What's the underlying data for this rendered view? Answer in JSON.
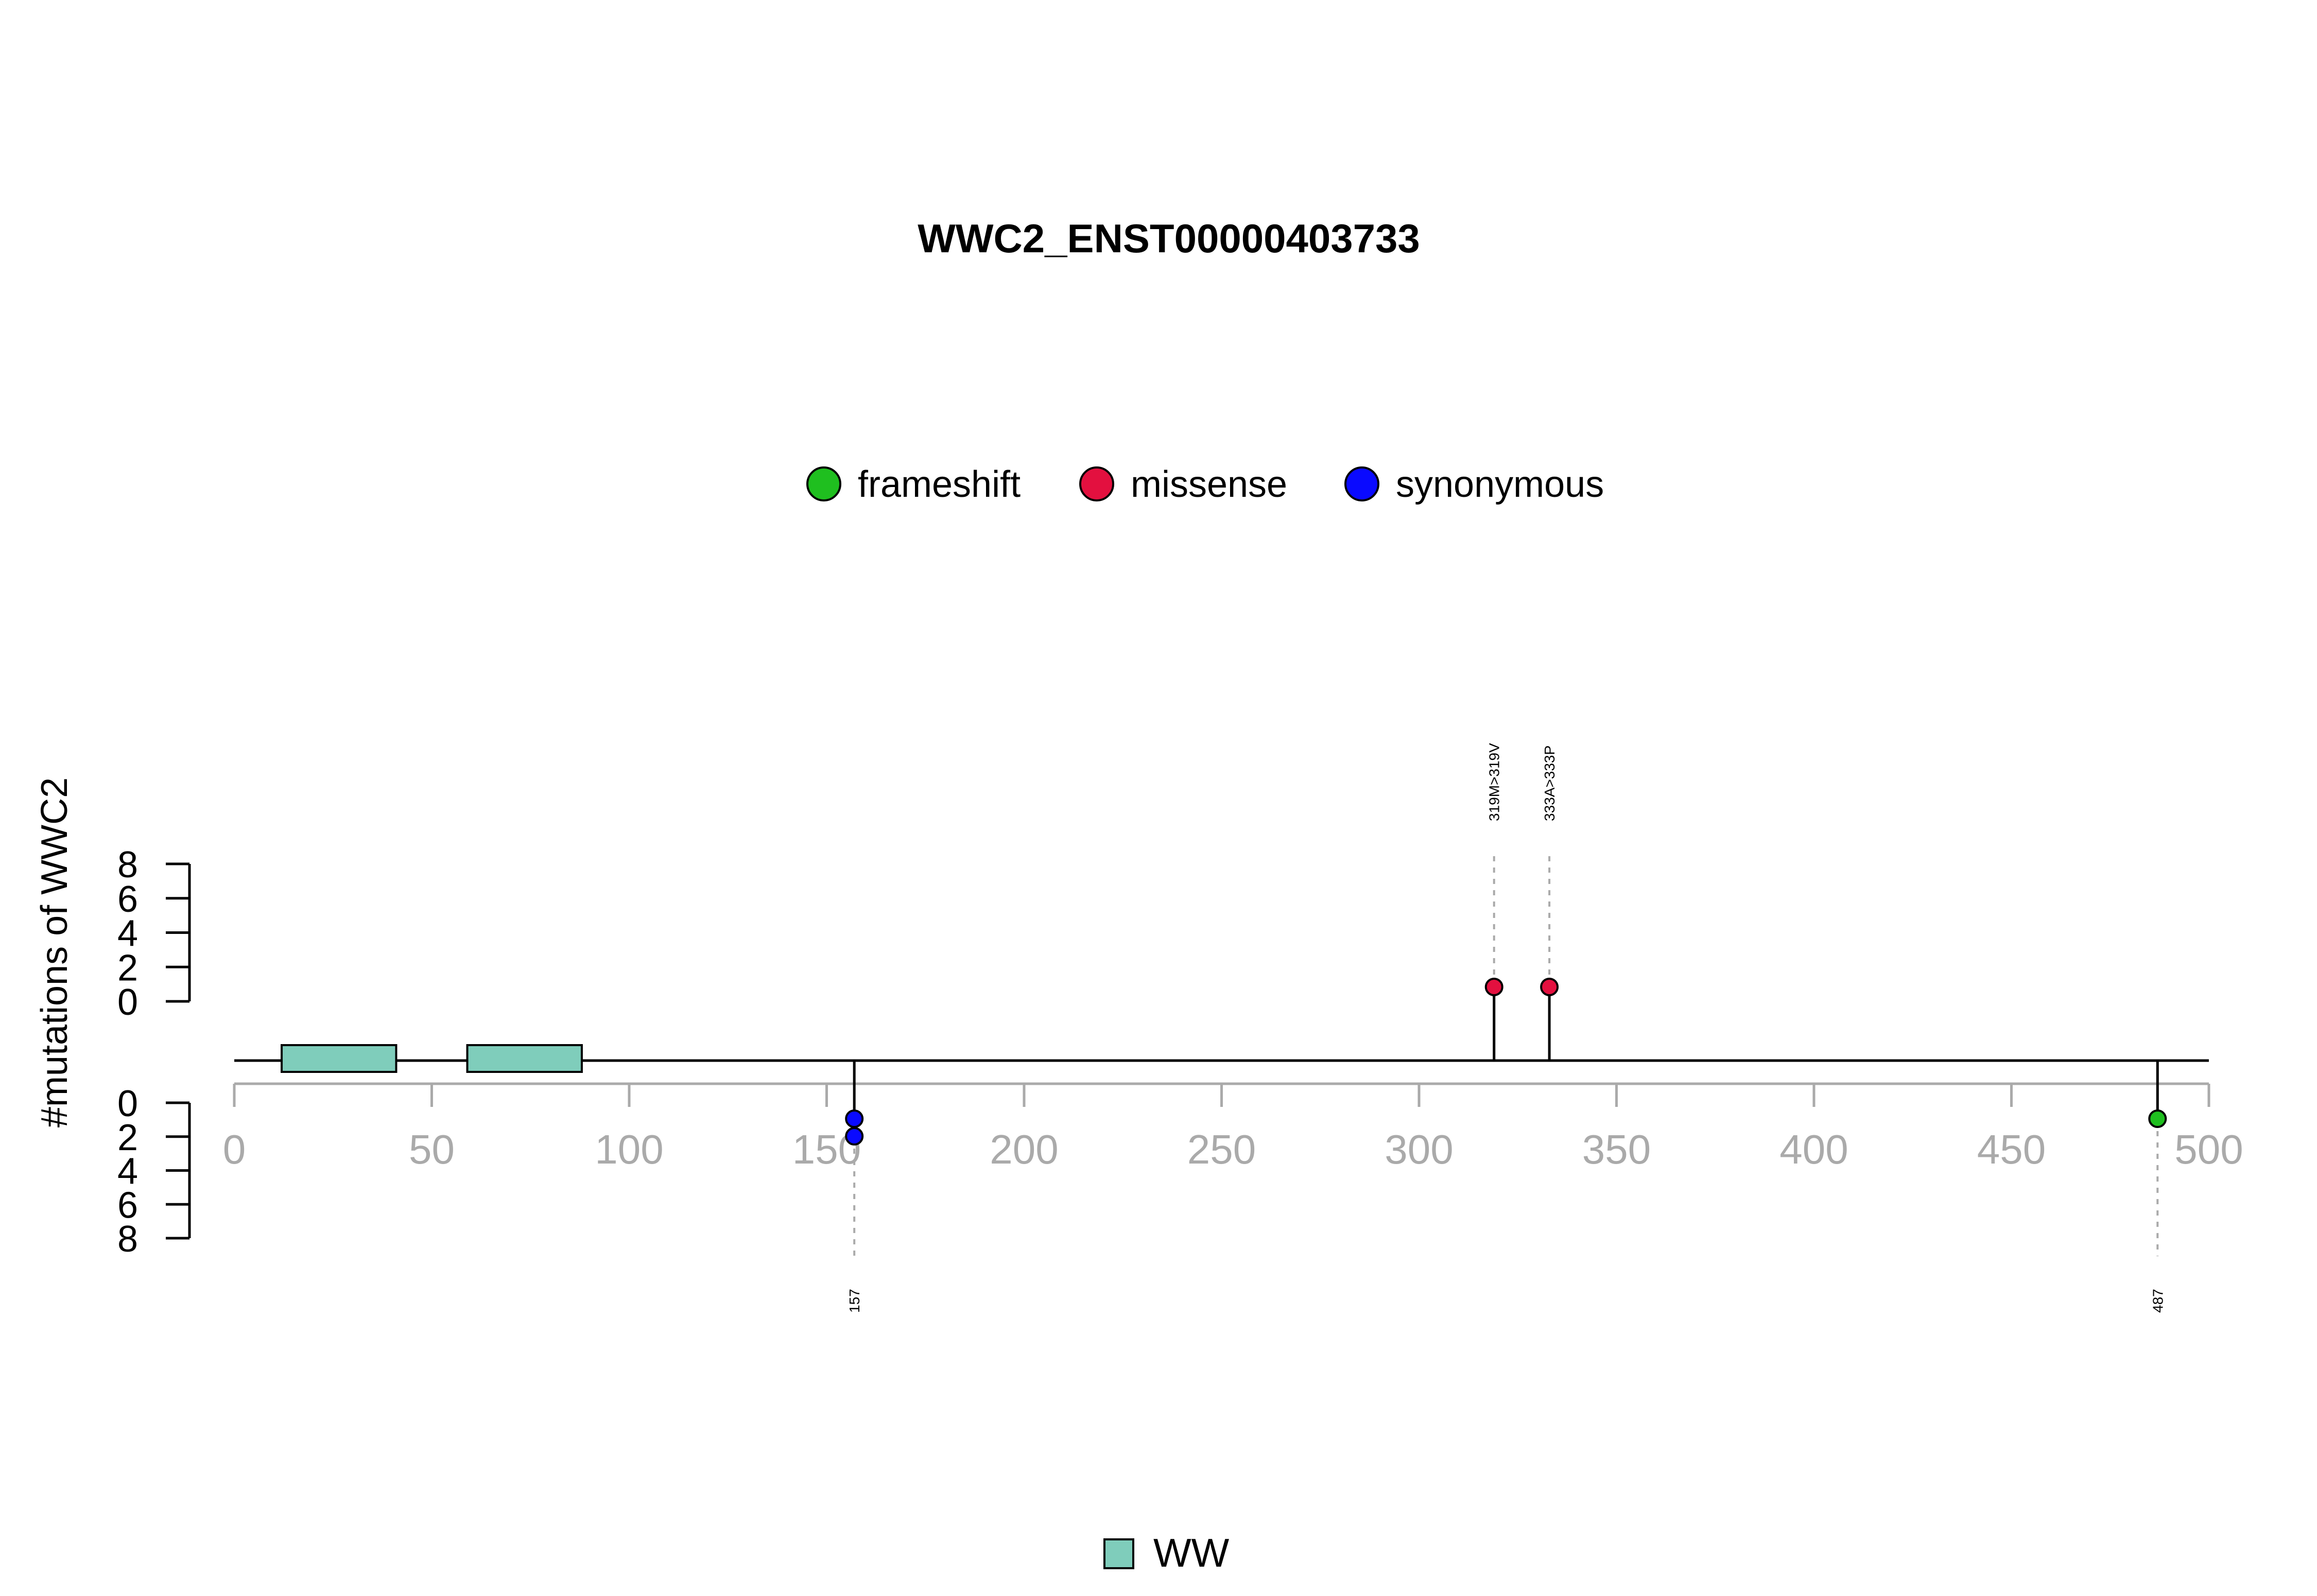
{
  "chart_data": {
    "type": "lollipop",
    "title": "WWC2_ENST00000403733",
    "ylabel": "#mutations of WWC2",
    "xlim": [
      0,
      500
    ],
    "x_ticks": [
      0,
      50,
      100,
      150,
      200,
      250,
      300,
      350,
      400,
      450,
      500
    ],
    "y_ticks": [
      0,
      2,
      4,
      6,
      8
    ],
    "ylim": [
      0,
      8
    ],
    "legend": {
      "position": "top-center",
      "items": [
        {
          "name": "frameshift",
          "color": "#1fbf1f"
        },
        {
          "name": "missense",
          "color": "#e3103f"
        },
        {
          "name": "synonymous",
          "color": "#0a0aff"
        }
      ]
    },
    "domain_legend": {
      "position": "bottom-center",
      "items": [
        {
          "name": "WW",
          "color": "#7fcdbb"
        }
      ]
    },
    "domains": [
      {
        "name": "WW",
        "start": 12,
        "end": 41
      },
      {
        "name": "WW",
        "start": 59,
        "end": 88
      }
    ],
    "mutations": [
      {
        "position": 157,
        "type": "synonymous",
        "count": 2,
        "side": "bottom",
        "label": "157"
      },
      {
        "position": 319,
        "type": "missense",
        "count": 1,
        "side": "top",
        "label": "319M>319V"
      },
      {
        "position": 333,
        "type": "missense",
        "count": 1,
        "side": "top",
        "label": "333A>333P"
      },
      {
        "position": 487,
        "type": "frameshift",
        "count": 1,
        "side": "bottom",
        "label": "487"
      }
    ]
  }
}
